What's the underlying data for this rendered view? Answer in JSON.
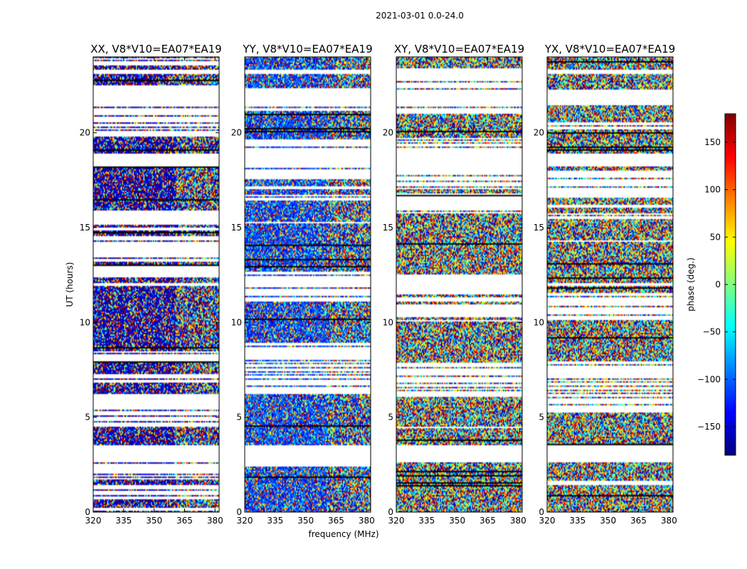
{
  "chart_data": {
    "type": "heatmap",
    "suptitle": "2021-03-01 0.0-24.0",
    "xlabel": "frequency (MHz)",
    "ylabel": "UT (hours)",
    "xlim": [
      320,
      382
    ],
    "ylim": [
      0,
      24
    ],
    "xticks": [
      320,
      335,
      350,
      365,
      380
    ],
    "yticks": [
      0,
      5,
      10,
      15,
      20
    ],
    "colorbar": {
      "label": "phase (deg.)",
      "range": [
        -180,
        180
      ],
      "ticks": [
        -150,
        -100,
        -50,
        0,
        50,
        100,
        150
      ],
      "tick_labels": [
        "−150",
        "−100",
        "−50",
        "0",
        "50",
        "100",
        "150"
      ],
      "colormap": [
        "#00007f",
        "#0000ff",
        "#007fff",
        "#00ffff",
        "#7fff7f",
        "#ffff00",
        "#ff7f00",
        "#ff0000",
        "#7f0000"
      ]
    },
    "missing_data_color": "#ffffff",
    "panels": [
      {
        "title": "XX, V8*V10=EA07*EA19",
        "dominant_phase_deg": -160,
        "coherence": 0.55
      },
      {
        "title": "YY, V8*V10=EA07*EA19",
        "dominant_phase_deg": -110,
        "coherence": 0.5
      },
      {
        "title": "XY, V8*V10=EA07*EA19",
        "dominant_phase_deg": 0,
        "coherence": 0.0
      },
      {
        "title": "YX, V8*V10=EA07*EA19",
        "dominant_phase_deg": 0,
        "coherence": 0.0
      }
    ],
    "data_gaps_ut": [
      [
        2.6,
        3.5
      ],
      [
        11.9,
        12.05
      ],
      [
        18.2,
        18.9
      ],
      [
        21.45,
        22.3
      ],
      [
        23.1,
        23.35
      ]
    ]
  }
}
